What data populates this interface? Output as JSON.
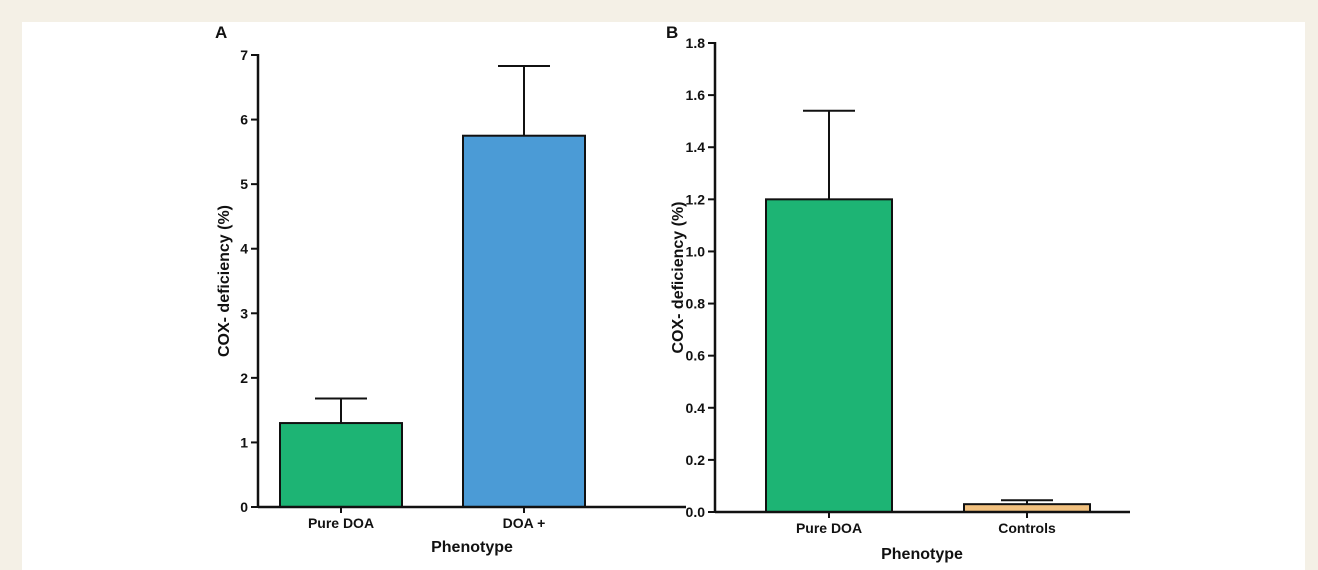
{
  "colors": {
    "page_border": "#f4f0e6",
    "green": "#1db474",
    "blue": "#4b9bd6",
    "tan": "#f1c07e",
    "axis": "#111111"
  },
  "chart_data": [
    {
      "panel": "A",
      "type": "bar",
      "title": "",
      "categories": [
        "Pure DOA",
        "DOA +"
      ],
      "values": [
        1.3,
        5.75
      ],
      "errors": [
        0.38,
        1.08
      ],
      "bar_colors": [
        "#1db474",
        "#4b9bd6"
      ],
      "xlabel": "Phenotype",
      "ylabel": "COX- deficiency (%)",
      "ylim": [
        0,
        7
      ],
      "yticks": [
        0,
        1,
        2,
        3,
        4,
        5,
        6,
        7
      ],
      "ytick_labels": [
        "0",
        "1",
        "2",
        "3",
        "4",
        "5",
        "6",
        "7"
      ],
      "grid": false,
      "legend": "none"
    },
    {
      "panel": "B",
      "type": "bar",
      "title": "",
      "categories": [
        "Pure DOA",
        "Controls"
      ],
      "values": [
        1.2,
        0.03
      ],
      "errors": [
        0.34,
        0.015
      ],
      "bar_colors": [
        "#1db474",
        "#f1c07e"
      ],
      "xlabel": "Phenotype",
      "ylabel": "COX- deficiency (%)",
      "ylim": [
        0,
        1.8
      ],
      "yticks": [
        0,
        0.2,
        0.4,
        0.6,
        0.8,
        1.0,
        1.2,
        1.4,
        1.6,
        1.8
      ],
      "ytick_labels": [
        "0.0",
        "0.2",
        "0.4",
        "0.6",
        "0.8",
        "1.0",
        "1.2",
        "1.4",
        "1.6",
        "1.8"
      ],
      "grid": false,
      "legend": "none"
    }
  ]
}
